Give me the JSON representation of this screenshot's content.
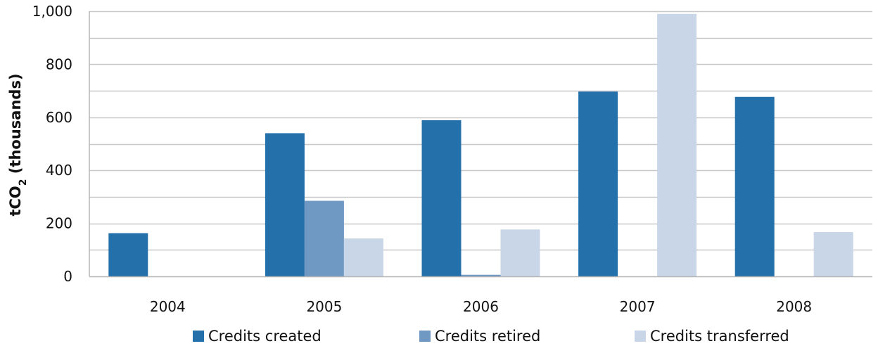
{
  "chart_data": {
    "type": "bar",
    "categories": [
      "2004",
      "2005",
      "2006",
      "2007",
      "2008"
    ],
    "series": [
      {
        "name": "Credits created",
        "values": [
          163,
          540,
          589,
          697,
          677
        ],
        "color": "#2470ab"
      },
      {
        "name": "Credits retired",
        "values": [
          0,
          285,
          6,
          0,
          0
        ],
        "color": "#6f98c3"
      },
      {
        "name": "Credits transferred",
        "values": [
          0,
          143,
          177,
          990,
          167
        ],
        "color": "#c9d6e7"
      }
    ],
    "ylabel_main": "tCO",
    "ylabel_sub": "2",
    "ylabel_rest": " (thousands)",
    "ylim": [
      0,
      1000
    ],
    "yticks": [
      0,
      200,
      400,
      600,
      800,
      1000
    ],
    "ytick_labels": [
      "0",
      "200",
      "400",
      "600",
      "800",
      "1,000"
    ],
    "grid": true,
    "legend_position": "bottom"
  }
}
